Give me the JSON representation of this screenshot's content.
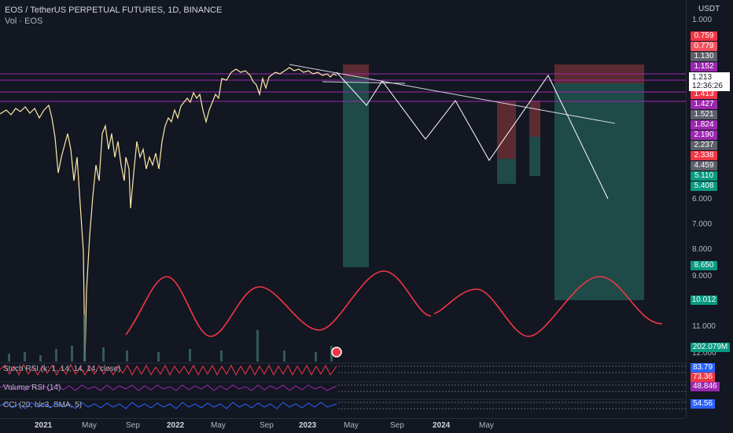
{
  "legend": {
    "symbol_line": "EOS / TetherUS PERPETUAL FUTURES, 1D, BINANCE",
    "volume_line": "Vol · EOS"
  },
  "price_axis": {
    "currency": "USDT",
    "ticks": [
      "1.000",
      "6.000",
      "7.000",
      "8.000",
      "9.000",
      "11.000",
      "12.000"
    ],
    "badges": [
      {
        "text": "0.759",
        "color": "#f23645"
      },
      {
        "text": "0.779",
        "color": "#f7525f"
      },
      {
        "text": "1.130",
        "color": "#5d606b"
      },
      {
        "text": "1.152",
        "color": "#9c27b0"
      },
      {
        "text": "1.413",
        "color": "#f23645"
      },
      {
        "text": "1.427",
        "color": "#9c27b0"
      },
      {
        "text": "1.521",
        "color": "#5d606b"
      },
      {
        "text": "1.824",
        "color": "#9c27b0"
      },
      {
        "text": "2.190",
        "color": "#9c27b0"
      },
      {
        "text": "2.237",
        "color": "#5d606b"
      },
      {
        "text": "2.338",
        "color": "#f23645"
      },
      {
        "text": "4.459",
        "color": "#5d606b"
      },
      {
        "text": "5.110",
        "color": "#089981"
      },
      {
        "text": "5.408",
        "color": "#089981"
      },
      {
        "text": "8.650",
        "color": "#089981"
      },
      {
        "text": "10.012",
        "color": "#089981"
      },
      {
        "text": "202.079M",
        "color": "#089981"
      }
    ],
    "current_price": "1.213",
    "countdown": "12:36:26"
  },
  "time_axis": {
    "labels": [
      "2021",
      "May",
      "Sep",
      "2022",
      "May",
      "Sep",
      "2023",
      "May",
      "Sep",
      "2024",
      "May"
    ]
  },
  "indicators": [
    {
      "label": "Stoch RSI (k: 1, 14, 14, 14, close)",
      "values": [
        {
          "text": "83.79",
          "color": "#2962ff"
        },
        {
          "text": "73.36",
          "color": "#f23645"
        }
      ]
    },
    {
      "label": "Volume RSI (14)",
      "values": [
        {
          "text": "48.846",
          "color": "#9c27b0"
        }
      ]
    },
    {
      "label": "CCI (20, hlc3, SMA, 5)",
      "values": [
        {
          "text": "54.56",
          "color": "#2962ff"
        }
      ]
    }
  ],
  "colors": {
    "candle": "#ffe9a6",
    "horizontal_line": "#9c27b0",
    "short_zone_top": "#5c2a31",
    "short_zone_bottom": "#1e4a48",
    "projection_line": "#ffffff",
    "cycle_curve": "#f23645"
  }
}
